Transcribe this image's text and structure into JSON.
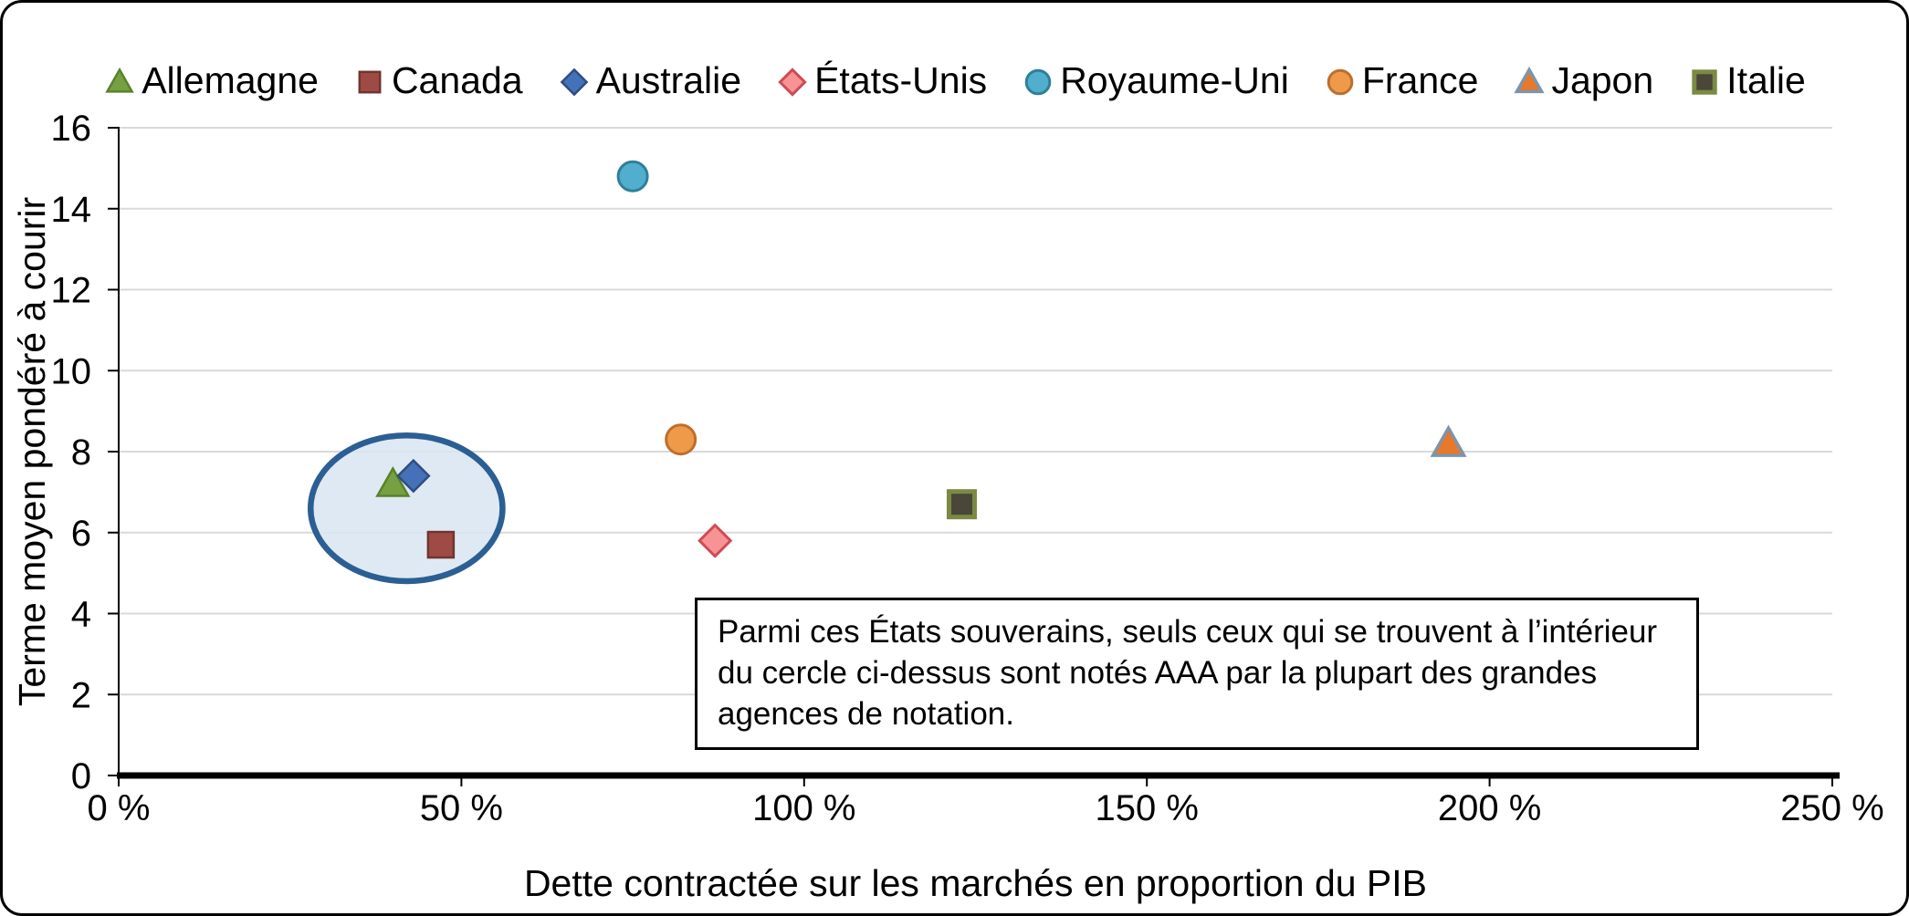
{
  "chart_data": {
    "type": "scatter",
    "title": "",
    "xlabel": "Dette contractée sur les marchés en proportion du PIB",
    "ylabel": "Terme moyen pondéré à courir",
    "xlim": [
      0,
      250
    ],
    "ylim": [
      0,
      16
    ],
    "x_ticks": [
      0,
      50,
      100,
      150,
      200,
      250
    ],
    "x_tick_labels": [
      "0 %",
      "50 %",
      "100 %",
      "150 %",
      "200 %",
      "250 %"
    ],
    "y_ticks": [
      0,
      2,
      4,
      6,
      8,
      10,
      12,
      14,
      16
    ],
    "y_tick_labels": [
      "0",
      "2",
      "4",
      "6",
      "8",
      "10",
      "12",
      "14",
      "16"
    ],
    "grid": "horizontal",
    "grid_color": "#D9D9D9",
    "legend_position": "top",
    "series": [
      {
        "name": "Allemagne",
        "marker": "triangle",
        "fill": "#76A041",
        "stroke": "#59822C",
        "stroke_width": 2.5,
        "x": 40,
        "y": 7.2
      },
      {
        "name": "Canada",
        "marker": "square",
        "fill": "#9E4B45",
        "stroke": "#713430",
        "stroke_width": 2.5,
        "x": 47,
        "y": 5.7
      },
      {
        "name": "Australie",
        "marker": "diamond",
        "fill": "#4571B8",
        "stroke": "#2E4E80",
        "stroke_width": 2.5,
        "x": 43,
        "y": 7.4
      },
      {
        "name": "États-Unis",
        "marker": "diamond",
        "fill": "#F79394",
        "stroke": "#CE4B53",
        "stroke_width": 3,
        "x": 87,
        "y": 5.8
      },
      {
        "name": "Royaume-Uni",
        "marker": "circle",
        "fill": "#51AECC",
        "stroke": "#2F7F99",
        "stroke_width": 3,
        "x": 75,
        "y": 14.8
      },
      {
        "name": "France",
        "marker": "circle",
        "fill": "#EE9A49",
        "stroke": "#BC6F2D",
        "stroke_width": 3,
        "x": 82,
        "y": 8.3
      },
      {
        "name": "Japon",
        "marker": "triangle",
        "fill": "#E8782A",
        "stroke": "#7E94AB",
        "stroke_width": 3.5,
        "x": 194,
        "y": 8.2
      },
      {
        "name": "Italie",
        "marker": "square",
        "fill": "#4A463A",
        "stroke": "#7A8A40",
        "stroke_width": 5,
        "x": 123,
        "y": 6.7
      }
    ],
    "highlight_ellipse": {
      "cx": 42,
      "cy": 6.6,
      "rx_data": 14,
      "ry_data": 1.8,
      "stroke": "#2B5F94",
      "stroke_width": 6.5,
      "fill": "#D9E5F2",
      "fill_opacity": 0.85
    }
  },
  "annotation_box": {
    "text": "Parmi ces États souverains, seuls ceux qui se trouvent à l’intérieur du cercle ci-dessus sont notés AAA par la plupart des grandes agences de notation."
  }
}
